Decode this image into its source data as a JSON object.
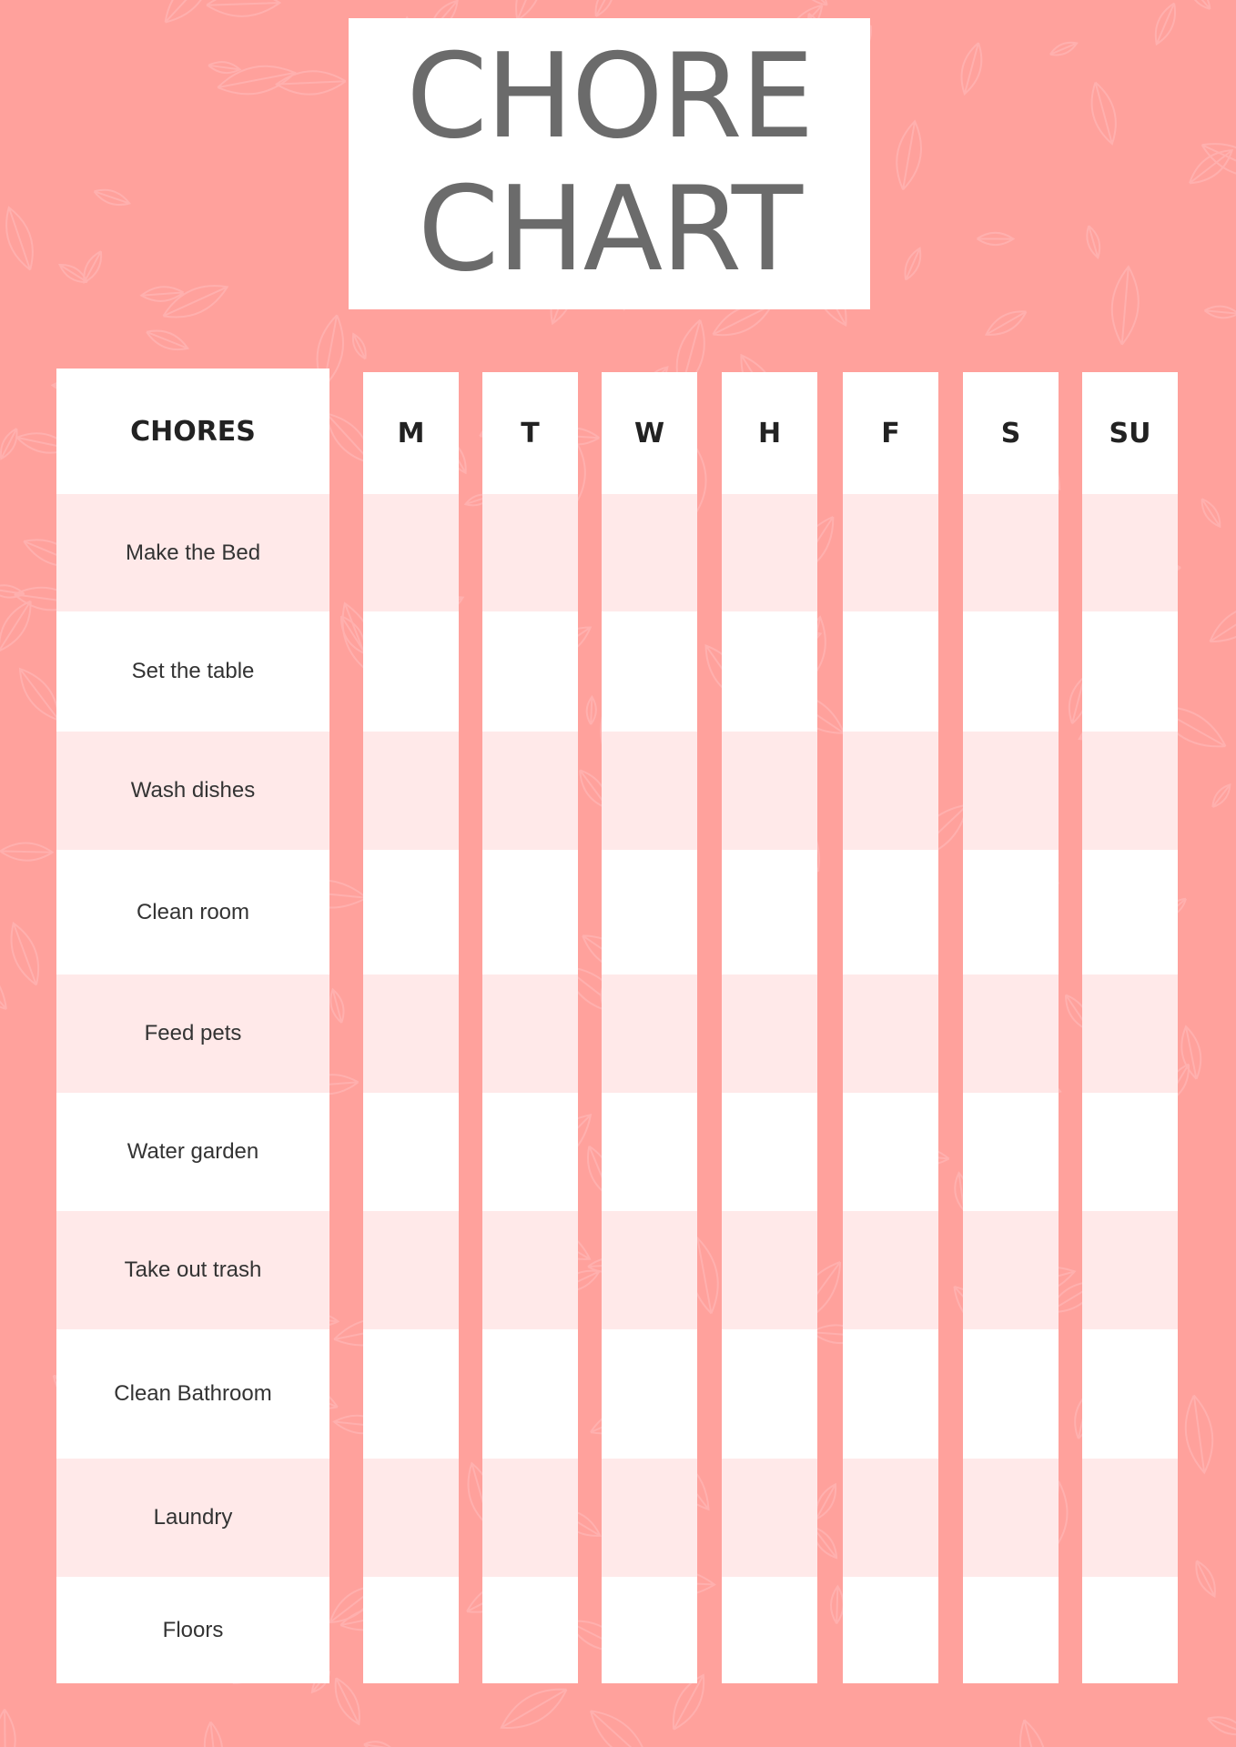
{
  "title": {
    "line1": "CHORE",
    "line2": "CHART"
  },
  "header": {
    "chores": "CHORES",
    "days": [
      "M",
      "T",
      "W",
      "H",
      "F",
      "S",
      "SU"
    ]
  },
  "chores": [
    "Make the Bed",
    "Set the table",
    "Wash dishes",
    "Clean room",
    "Feed pets",
    "Water garden",
    "Take out trash",
    "Clean Bathroom",
    "Laundry",
    "Floors"
  ],
  "colors": {
    "background": "#ffa19c",
    "stripe": "#ffe9e9",
    "title": "#6b6b6b"
  }
}
